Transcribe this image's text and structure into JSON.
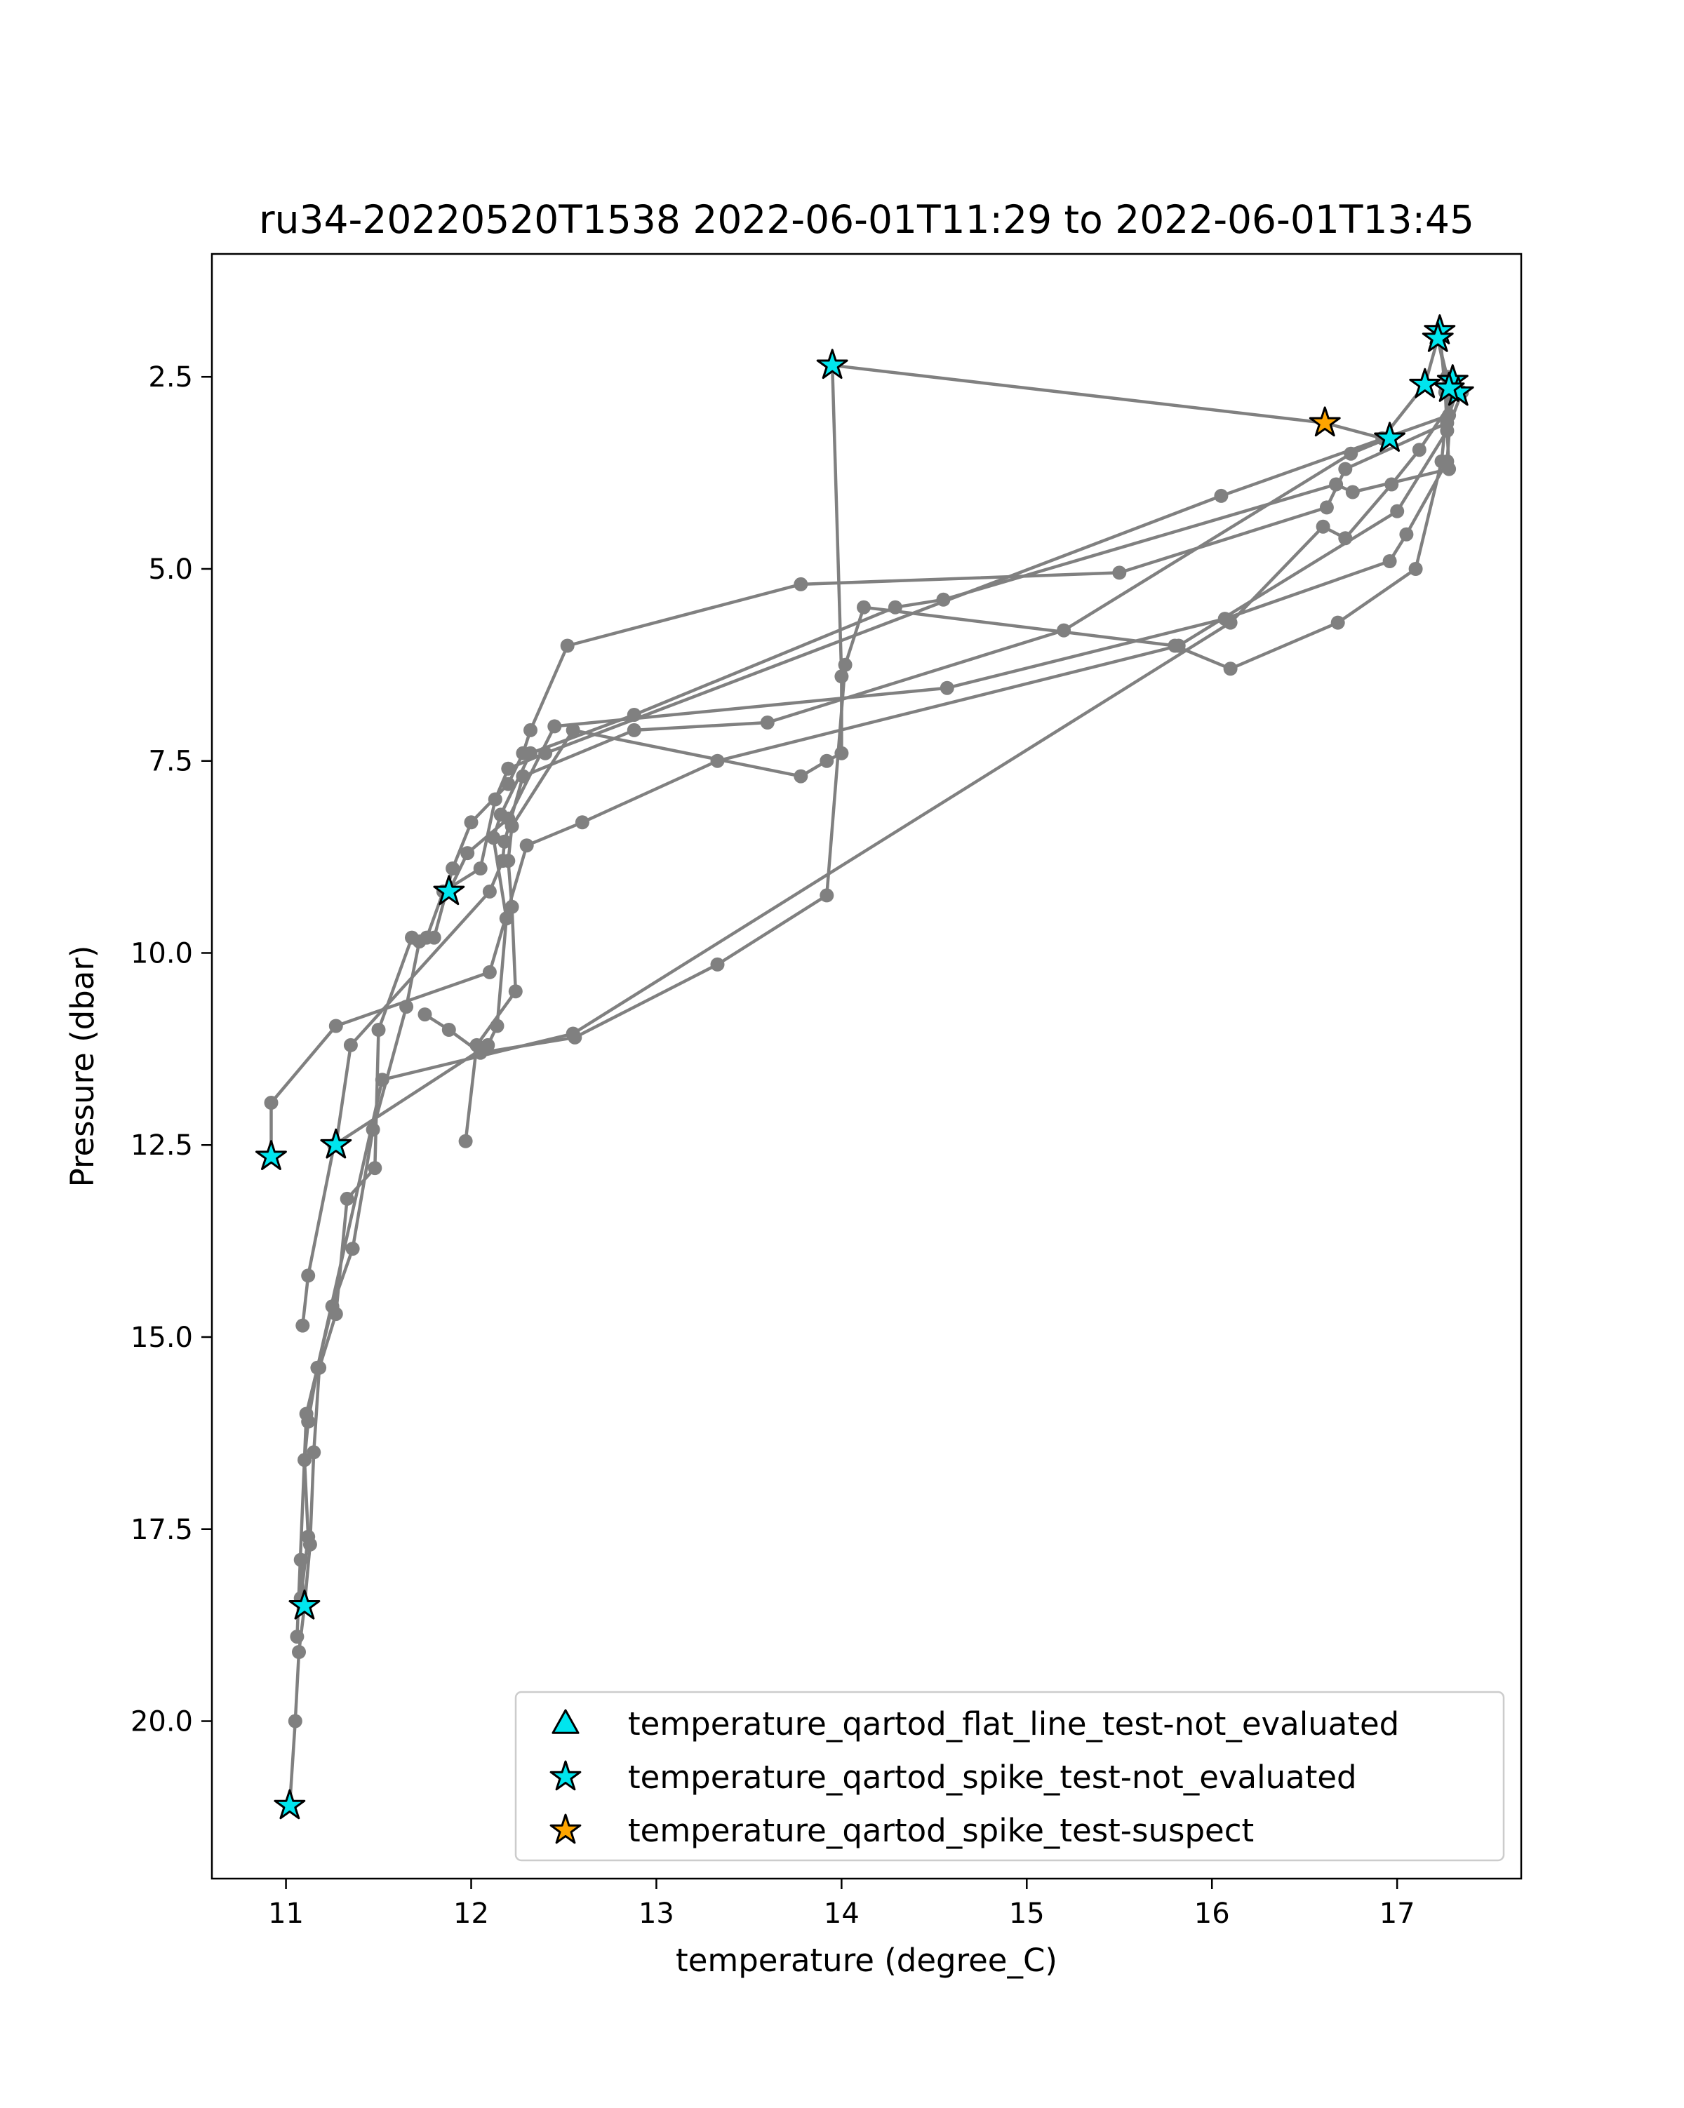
{
  "chart_data": {
    "type": "scatter",
    "title": "ru34-20220520T1538 2022-06-01T11:29 to 2022-06-01T13:45",
    "xlabel": "temperature (degree_C)",
    "ylabel": "Pressure (dbar)",
    "xlim": [
      10.6,
      17.67
    ],
    "ylim": [
      22.05,
      0.9
    ],
    "y_inverted": true,
    "grid": false,
    "legend_position": "lower-right",
    "x_ticks": [
      11,
      12,
      13,
      14,
      15,
      16,
      17
    ],
    "x_tick_labels": [
      "11",
      "12",
      "13",
      "14",
      "15",
      "16",
      "17"
    ],
    "y_ticks": [
      2.5,
      5.0,
      7.5,
      10.0,
      12.5,
      15.0,
      17.5,
      20.0
    ],
    "y_tick_labels": [
      "2.5",
      "5.0",
      "7.5",
      "10.0",
      "12.5",
      "15.0",
      "17.5",
      "20.0"
    ],
    "profile_color": "#808080",
    "profiles": [
      {
        "x": [
          17.22,
          17.28,
          17.27,
          16.72,
          16.62,
          15.5,
          13.78,
          12.52,
          12.32,
          12.28,
          12.2,
          12.0,
          11.9,
          11.8,
          11.68,
          11.5,
          11.48,
          11.33,
          11.27,
          11.18,
          11.15,
          11.13,
          11.1,
          11.07,
          11.05,
          11.02
        ],
        "y": [
          2.0,
          2.7,
          3.1,
          3.7,
          4.2,
          5.05,
          5.2,
          6.0,
          7.1,
          7.4,
          7.8,
          8.3,
          8.9,
          9.8,
          9.8,
          11.0,
          12.8,
          13.2,
          14.7,
          15.4,
          16.5,
          17.7,
          18.5,
          19.1,
          20.0,
          21.1
        ]
      },
      {
        "x": [
          17.3,
          17.32,
          17.28,
          16.05,
          12.4,
          12.2,
          12.13,
          12.05,
          11.85,
          11.76,
          11.72,
          11.65,
          11.47,
          11.36,
          11.25,
          11.11,
          11.06
        ],
        "y": [
          2.55,
          2.7,
          3.0,
          4.05,
          7.4,
          7.6,
          8.0,
          8.9,
          9.2,
          9.8,
          9.85,
          10.7,
          12.3,
          13.85,
          14.6,
          16.0,
          18.9
        ]
      },
      {
        "x": [
          17.23,
          17.26,
          17.28,
          16.76,
          16.67,
          14.55,
          14.29,
          12.88,
          12.32,
          12.16,
          12.12,
          12.19,
          12.14,
          12.09,
          11.26,
          11.12,
          11.09
        ],
        "y": [
          1.9,
          2.7,
          3.7,
          4.0,
          3.9,
          5.4,
          5.5,
          6.9,
          7.4,
          8.2,
          8.5,
          9.55,
          10.95,
          11.2,
          12.5,
          14.2,
          14.85
        ]
      },
      {
        "x": [
          17.27,
          17.22,
          17.15,
          16.92,
          16.61,
          13.95,
          14.0,
          14.0,
          13.92,
          13.78,
          12.55,
          12.22,
          12.2,
          12.22,
          12.24,
          12.03,
          11.97
        ],
        "y": [
          2.5,
          2.0,
          2.6,
          3.3,
          3.1,
          2.35,
          6.4,
          7.4,
          7.5,
          7.7,
          7.1,
          8.35,
          8.8,
          9.4,
          10.5,
          11.2,
          12.45
        ]
      },
      {
        "x": [
          17.33,
          17.12,
          16.97,
          16.72,
          16.6,
          16.1,
          12.55,
          11.52,
          11.17,
          11.12,
          11.1,
          11.12,
          11.08,
          11.08,
          11.1
        ],
        "y": [
          2.7,
          3.45,
          3.9,
          4.6,
          4.45,
          5.7,
          11.05,
          11.65,
          15.4,
          16.1,
          16.6,
          17.6,
          18.4,
          17.9,
          18.5
        ]
      },
      {
        "x": [
          17.28,
          17.24,
          17.1,
          16.68,
          16.1,
          15.8,
          14.12,
          14.02,
          13.92,
          13.33,
          12.56,
          12.05,
          11.88,
          11.75
        ],
        "y": [
          2.65,
          3.6,
          5.0,
          5.7,
          6.3,
          6.0,
          5.5,
          6.25,
          9.25,
          10.15,
          11.1,
          11.3,
          11.0,
          10.8
        ]
      },
      {
        "x": [
          17.3,
          17.27,
          17.05,
          16.96,
          16.07,
          14.57,
          12.45,
          12.2,
          11.98,
          11.88
        ],
        "y": [
          2.6,
          3.6,
          4.55,
          4.9,
          5.65,
          6.55,
          7.05,
          8.25,
          8.7,
          9.2
        ]
      },
      {
        "x": [
          17.35,
          17.27,
          17.0,
          15.82,
          13.33,
          12.6,
          12.3,
          12.1,
          11.27,
          10.92,
          10.92
        ],
        "y": [
          2.7,
          3.2,
          4.25,
          6.0,
          7.5,
          8.3,
          8.6,
          10.25,
          10.95,
          11.95,
          12.65
        ]
      },
      {
        "x": [
          16.95,
          16.75,
          15.2,
          13.6,
          12.88,
          12.28,
          12.18,
          12.17,
          12.1,
          11.35,
          11.27
        ],
        "y": [
          3.3,
          3.5,
          5.8,
          7.0,
          7.1,
          7.7,
          8.55,
          8.8,
          9.2,
          11.2,
          12.5
        ]
      }
    ],
    "markers": [
      {
        "series": "temperature_qartod_spike_test-not_evaluated",
        "x": 13.95,
        "y": 2.35
      },
      {
        "series": "temperature_qartod_spike_test-not_evaluated",
        "x": 17.23,
        "y": 1.9
      },
      {
        "series": "temperature_qartod_spike_test-not_evaluated",
        "x": 17.22,
        "y": 2.0
      },
      {
        "series": "temperature_qartod_spike_test-not_evaluated",
        "x": 17.15,
        "y": 2.6
      },
      {
        "series": "temperature_qartod_spike_test-not_evaluated",
        "x": 17.3,
        "y": 2.55
      },
      {
        "series": "temperature_qartod_spike_test-not_evaluated",
        "x": 17.33,
        "y": 2.7
      },
      {
        "series": "temperature_qartod_spike_test-not_evaluated",
        "x": 17.28,
        "y": 2.65
      },
      {
        "series": "temperature_qartod_spike_test-not_evaluated",
        "x": 16.96,
        "y": 3.3
      },
      {
        "series": "temperature_qartod_spike_test-not_evaluated",
        "x": 11.88,
        "y": 9.2
      },
      {
        "series": "temperature_qartod_spike_test-not_evaluated",
        "x": 11.27,
        "y": 12.5
      },
      {
        "series": "temperature_qartod_spike_test-not_evaluated",
        "x": 10.92,
        "y": 12.65
      },
      {
        "series": "temperature_qartod_spike_test-not_evaluated",
        "x": 11.1,
        "y": 18.5
      },
      {
        "series": "temperature_qartod_spike_test-not_evaluated",
        "x": 11.02,
        "y": 21.1
      },
      {
        "series": "temperature_qartod_spike_test-suspect",
        "x": 16.61,
        "y": 3.1
      }
    ],
    "legend": [
      {
        "label": "temperature_qartod_flat_line_test-not_evaluated",
        "marker": "triangle",
        "color": "#00e5ee"
      },
      {
        "label": "temperature_qartod_spike_test-not_evaluated",
        "marker": "star",
        "color": "#00e5ee"
      },
      {
        "label": "temperature_qartod_spike_test-suspect",
        "marker": "star",
        "color": "#ffa500"
      }
    ]
  }
}
